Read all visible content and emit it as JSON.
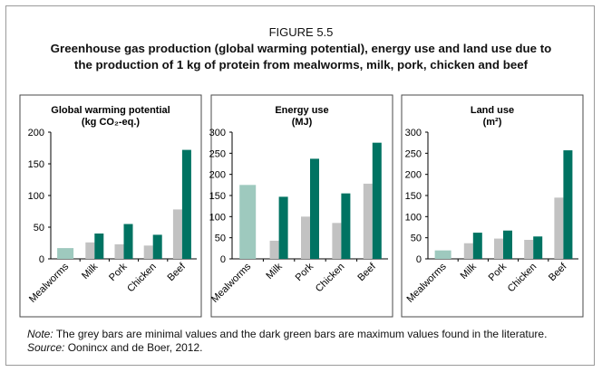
{
  "figure_label": "FIGURE 5.5",
  "title": "Greenhouse gas production (global warming potential), energy use and land use due to the production of 1 kg of protein from mealworms, milk, pork, chicken and beef",
  "title_lines": [
    "Greenhouse gas production (global warming potential), energy use and land use due to",
    "the production of 1 kg of protein from mealworms, milk, pork, chicken and beef"
  ],
  "note_prefix": "Note:",
  "note_text": "The grey bars are minimal values and the dark green bars are maximum values found in the literature.",
  "source_prefix": "Source:",
  "source_text": "Oonincx and de Boer, 2012.",
  "colors": {
    "mealworm": "#9ec9be",
    "min": "#c2c2c2",
    "max": "#007362",
    "axis": "#000000",
    "panel": "#4a4a4a"
  },
  "chart_data": [
    {
      "type": "bar",
      "title": "Global warming potential",
      "unit": "(kg CO₂-eq.)",
      "categories": [
        "Mealworms",
        "Milk",
        "Pork",
        "Chicken",
        "Beef"
      ],
      "ylim": [
        0,
        200
      ],
      "yticks": [
        0,
        50,
        100,
        150,
        200
      ],
      "series": [
        {
          "role": "single",
          "values": [
            17,
            null,
            null,
            null,
            null
          ]
        },
        {
          "role": "min",
          "values": [
            null,
            26,
            23,
            21,
            78
          ]
        },
        {
          "role": "max",
          "values": [
            null,
            40,
            55,
            38,
            172
          ]
        }
      ]
    },
    {
      "type": "bar",
      "title": "Energy use",
      "unit": "(MJ)",
      "categories": [
        "Mealworms",
        "Milk",
        "Pork",
        "Chicken",
        "Beef"
      ],
      "ylim": [
        0,
        300
      ],
      "yticks": [
        0,
        50,
        100,
        150,
        200,
        250,
        300
      ],
      "series": [
        {
          "role": "single",
          "values": [
            175,
            null,
            null,
            null,
            null
          ]
        },
        {
          "role": "min",
          "values": [
            null,
            43,
            100,
            85,
            178
          ]
        },
        {
          "role": "max",
          "values": [
            null,
            147,
            237,
            155,
            275
          ]
        }
      ]
    },
    {
      "type": "bar",
      "title": "Land use",
      "unit": "(m²)",
      "categories": [
        "Mealworms",
        "Milk",
        "Pork",
        "Chicken",
        "Beef"
      ],
      "ylim": [
        0,
        300
      ],
      "yticks": [
        0,
        50,
        100,
        150,
        200,
        250,
        300
      ],
      "series": [
        {
          "role": "single",
          "values": [
            20,
            null,
            null,
            null,
            null
          ]
        },
        {
          "role": "min",
          "values": [
            null,
            37,
            48,
            45,
            145
          ]
        },
        {
          "role": "max",
          "values": [
            null,
            62,
            67,
            53,
            257
          ]
        }
      ]
    }
  ]
}
